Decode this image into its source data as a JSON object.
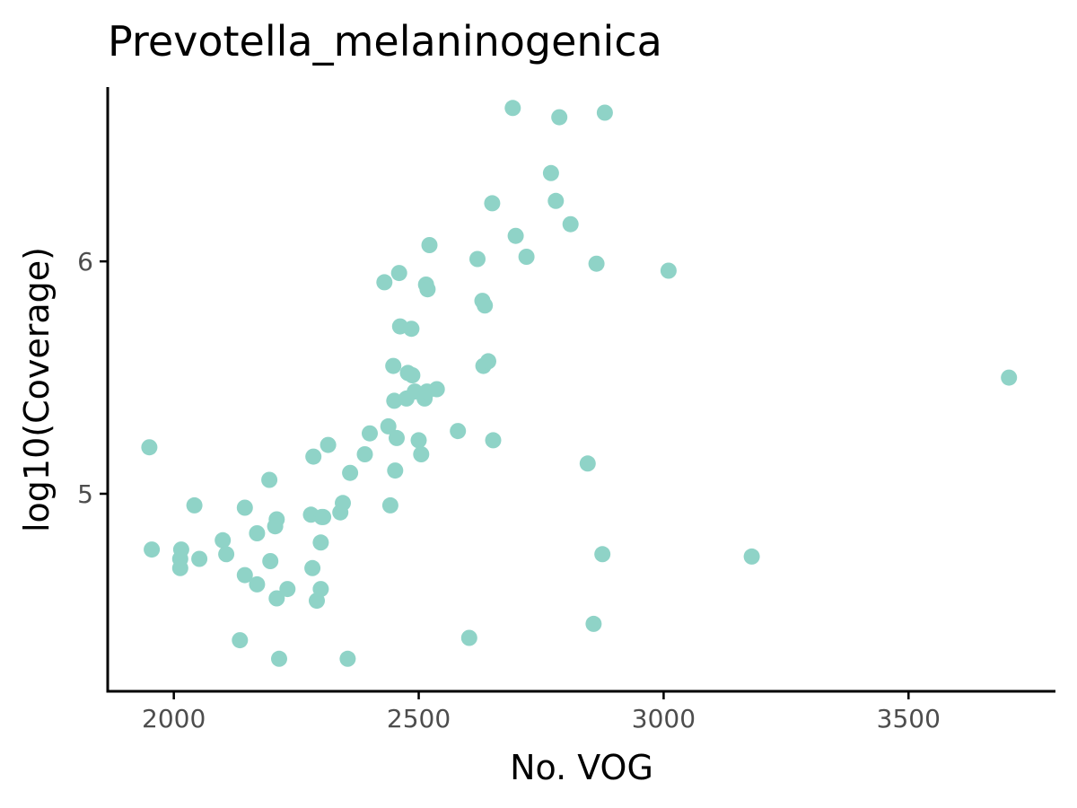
{
  "chart_data": {
    "type": "scatter",
    "title": "Prevotella_melaninogenica",
    "xlabel": "No. VOG",
    "ylabel": "log10(Coverage)",
    "xlim": [
      1865,
      3800
    ],
    "ylim": [
      4.15,
      6.75
    ],
    "xticks": [
      2000,
      2500,
      3000,
      3500
    ],
    "yticks": [
      5,
      6
    ],
    "grid": false,
    "point_color": "#8fd3c7",
    "series": [
      {
        "x": [
          1950,
          1955,
          2015,
          2013,
          2013,
          2042,
          2052,
          2100,
          2107,
          2135,
          2145,
          2145,
          2170,
          2170,
          2195,
          2197,
          2207,
          2210,
          2210,
          2215,
          2232,
          2280,
          2283,
          2285,
          2292,
          2300,
          2300,
          2302,
          2305,
          2315,
          2340,
          2345,
          2355,
          2360,
          2390,
          2400,
          2430,
          2438,
          2442,
          2448,
          2450,
          2452,
          2455,
          2460,
          2462,
          2475,
          2478,
          2485,
          2487,
          2492,
          2500,
          2505,
          2512,
          2515,
          2517,
          2518,
          2522,
          2537,
          2580,
          2603,
          2620,
          2630,
          2632,
          2635,
          2642,
          2650,
          2652,
          2692,
          2698,
          2720,
          2770,
          2780,
          2787,
          2810,
          2845,
          2857,
          2863,
          2875,
          2880,
          3010,
          3180,
          3705
        ],
        "y": [
          5.2,
          4.76,
          4.76,
          4.72,
          4.68,
          4.95,
          4.72,
          4.8,
          4.74,
          4.37,
          4.94,
          4.65,
          4.83,
          4.61,
          5.06,
          4.71,
          4.86,
          4.89,
          4.55,
          4.29,
          4.59,
          4.91,
          4.68,
          5.16,
          4.54,
          4.79,
          4.59,
          4.9,
          4.9,
          5.21,
          4.92,
          4.96,
          4.29,
          5.09,
          5.17,
          5.26,
          5.91,
          5.29,
          4.95,
          5.55,
          5.4,
          5.1,
          5.24,
          5.95,
          5.72,
          5.41,
          5.52,
          5.71,
          5.51,
          5.44,
          5.23,
          5.17,
          5.41,
          5.9,
          5.44,
          5.88,
          6.07,
          5.45,
          5.27,
          4.38,
          6.01,
          5.83,
          5.55,
          5.81,
          5.57,
          6.25,
          5.23,
          6.66,
          6.11,
          6.02,
          6.38,
          6.26,
          6.62,
          6.16,
          5.13,
          4.44,
          5.99,
          4.74,
          6.64,
          5.96,
          4.73,
          5.5
        ]
      }
    ]
  }
}
